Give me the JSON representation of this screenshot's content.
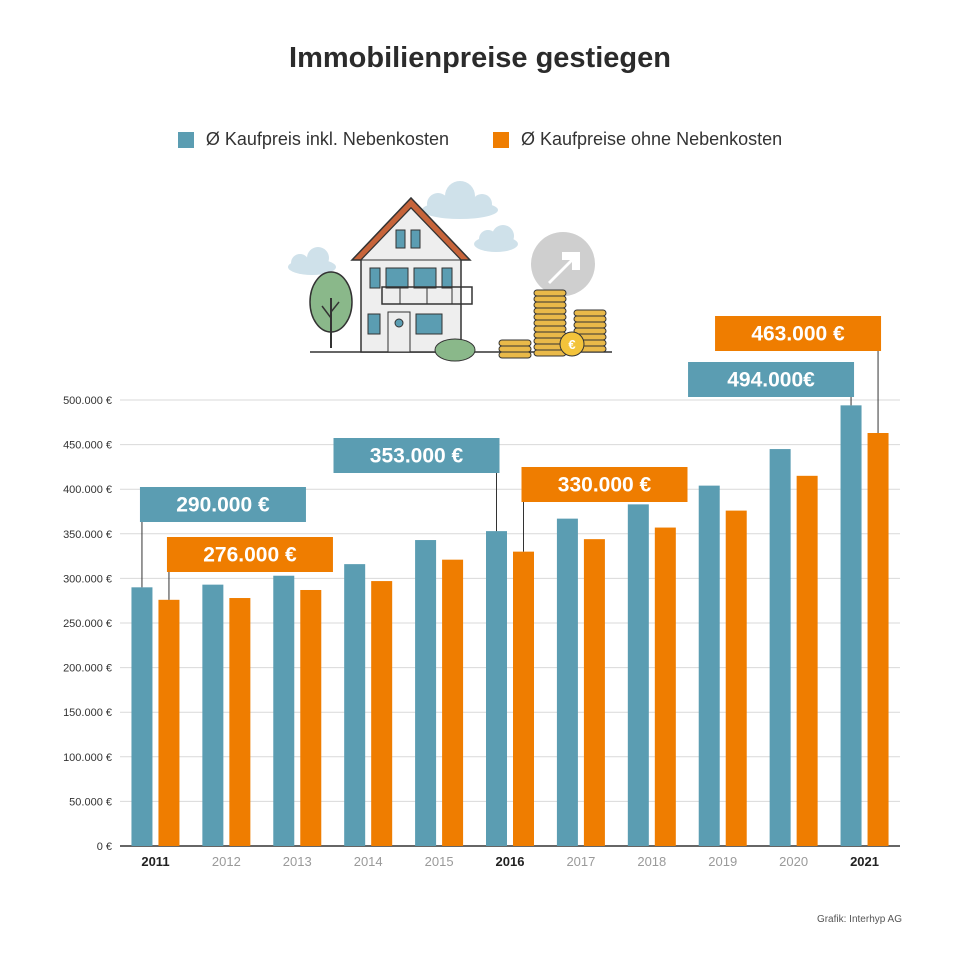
{
  "colors": {
    "teal": "#5b9db2",
    "orange": "#ef7d00",
    "grid": "#d9d9d9",
    "axis": "#333333"
  },
  "source": "Grafik: Interhyp AG",
  "chart_data": {
    "type": "bar",
    "title": "Immobilienpreise gestiegen",
    "categories": [
      "2011",
      "2012",
      "2013",
      "2014",
      "2015",
      "2016",
      "2017",
      "2018",
      "2019",
      "2020",
      "2021"
    ],
    "highlight_categories": [
      "2011",
      "2016",
      "2021"
    ],
    "ylim": [
      0,
      500000
    ],
    "yticks": [
      {
        "value": 0,
        "label": "0 €"
      },
      {
        "value": 50000,
        "label": "50.000 €"
      },
      {
        "value": 100000,
        "label": "100.000 €"
      },
      {
        "value": 150000,
        "label": "150.000 €"
      },
      {
        "value": 200000,
        "label": "200.000 €"
      },
      {
        "value": 250000,
        "label": "250.000 €"
      },
      {
        "value": 300000,
        "label": "300.000 €"
      },
      {
        "value": 350000,
        "label": "350.000 €"
      },
      {
        "value": 400000,
        "label": "400.000 €"
      },
      {
        "value": 450000,
        "label": "450.000 €"
      },
      {
        "value": 500000,
        "label": "500.000 €"
      }
    ],
    "legend_position": "top",
    "grid": true,
    "series": [
      {
        "name": "Ø Kaufpreis inkl. Nebenkosten",
        "color": "#5b9db2",
        "values": [
          290000,
          293000,
          303000,
          316000,
          343000,
          353000,
          367000,
          383000,
          404000,
          445000,
          494000
        ]
      },
      {
        "name": "Ø Kaufpreise ohne Nebenkosten",
        "color": "#ef7d00",
        "values": [
          276000,
          278000,
          287000,
          297000,
          321000,
          330000,
          344000,
          357000,
          376000,
          415000,
          463000
        ]
      }
    ],
    "annotations": [
      {
        "series": 0,
        "category": "2011",
        "label": "290.000 €"
      },
      {
        "series": 1,
        "category": "2011",
        "label": "276.000 €"
      },
      {
        "series": 0,
        "category": "2016",
        "label": "353.000 €"
      },
      {
        "series": 1,
        "category": "2016",
        "label": "330.000 €"
      },
      {
        "series": 0,
        "category": "2021",
        "label": "494.000€"
      },
      {
        "series": 1,
        "category": "2021",
        "label": "463.000 €"
      }
    ]
  }
}
